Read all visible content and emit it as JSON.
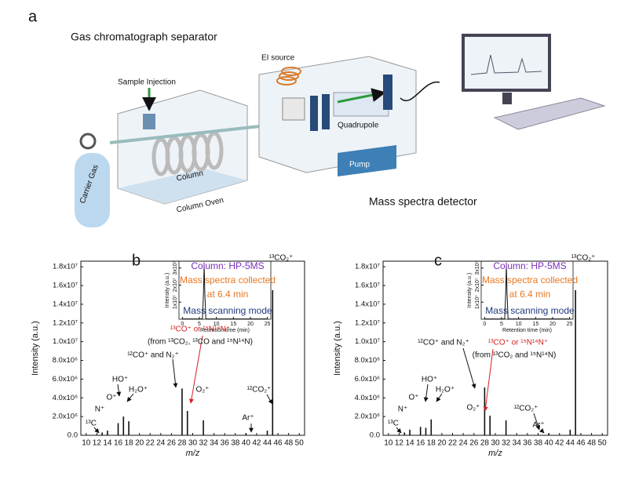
{
  "diagram": {
    "panel": "a",
    "title": "Gas chromatograph separator",
    "ei": "EI source",
    "injection": "Sample Injection",
    "quadrupole": "Quadrupole",
    "carrier": "Carrier Gas",
    "column": "Column",
    "oven": "Column Oven",
    "pump": "Pump",
    "detector": "Mass spectra detector"
  },
  "chart_data": [
    {
      "type": "bar",
      "panel": "b",
      "color": "#111",
      "xlabel": "m/z",
      "ylabel": "Intensity (a.u.)",
      "x": [
        13,
        14,
        16,
        17,
        18,
        28,
        29,
        32,
        40,
        44,
        45
      ],
      "values": [
        300000,
        500000,
        1300000,
        2000000,
        1500000,
        5000000,
        2600000,
        1600000,
        200000,
        500000,
        15500000
      ],
      "xlim": [
        9,
        51
      ],
      "xticks": [
        10,
        12,
        14,
        16,
        18,
        20,
        22,
        24,
        26,
        28,
        30,
        32,
        34,
        36,
        38,
        40,
        42,
        44,
        46,
        48,
        50
      ],
      "ylim": [
        0,
        18600000
      ],
      "yticks": [
        {
          "value": 0,
          "label": "0.0"
        },
        {
          "value": 2000000,
          "label": "2.0x10⁶"
        },
        {
          "value": 4000000,
          "label": "4.0x10⁶"
        },
        {
          "value": 6000000,
          "label": "6.0x10⁶"
        },
        {
          "value": 8000000,
          "label": "8.0x10⁶"
        },
        {
          "value": 10000000,
          "label": "1.0x10⁷"
        },
        {
          "value": 12000000,
          "label": "1.2x10⁷"
        },
        {
          "value": 14000000,
          "label": "1.4x10⁷"
        },
        {
          "value": 16000000,
          "label": "1.6x10⁷"
        },
        {
          "value": 18000000,
          "label": "1.8x10⁷"
        }
      ],
      "annotations": [
        {
          "text": "¹³C",
          "color": "#111"
        },
        {
          "text": "N⁺",
          "color": "#111"
        },
        {
          "text": "O⁺",
          "color": "#111"
        },
        {
          "text": "HO⁺",
          "color": "#111"
        },
        {
          "text": "H₂O⁺",
          "color": "#111"
        },
        {
          "text": "¹²CO⁺ and N₂⁺",
          "color": "#111"
        },
        {
          "text": "¹³CO⁺ or ¹⁵N¹⁴N⁺",
          "color": "#d42020"
        },
        {
          "text": "(from ¹³CO₂, ¹³CO and ¹⁵N¹⁴N)",
          "color": "#111"
        },
        {
          "text": "O₂⁺",
          "color": "#111"
        },
        {
          "text": "Ar⁺",
          "color": "#111"
        },
        {
          "text": "¹²CO₂⁺",
          "color": "#111"
        },
        {
          "text": "¹³CO₂⁺",
          "color": "#111"
        }
      ],
      "notes": [
        {
          "text": "Column: HP-5MS",
          "color": "#7b2fbe"
        },
        {
          "text": "Mass spectra collected",
          "color": "#e87722"
        },
        {
          "text": "at 6.4 min",
          "color": "#e87722"
        },
        {
          "text": "Mass scanning mode",
          "color": "#1f3a7a"
        }
      ],
      "inset": {
        "type": "line",
        "color": "#111",
        "xlabel": "Retention time (min)",
        "ylabel": "Intensity (a.u.)",
        "x": [
          0,
          5.9,
          6.2,
          6.4,
          6.6,
          6.9,
          25
        ],
        "values": [
          200000,
          200000,
          15000000,
          32000000,
          15000000,
          200000,
          200000
        ],
        "xlim": [
          -1,
          26
        ],
        "xticks": [
          0,
          5,
          10,
          15,
          20,
          25
        ],
        "ylim": [
          0,
          34000000
        ],
        "yticks": [
          {
            "value": 10000000,
            "label": "1x10⁷"
          },
          {
            "value": 20000000,
            "label": "2x10⁷"
          },
          {
            "value": 30000000,
            "label": "3x10⁷"
          }
        ]
      }
    },
    {
      "type": "bar",
      "panel": "c",
      "color": "#111",
      "xlabel": "m/z",
      "ylabel": "Intensity (a.u.)",
      "x": [
        13,
        14,
        16,
        17,
        18,
        28,
        29,
        32,
        40,
        44,
        45
      ],
      "values": [
        300000,
        600000,
        900000,
        800000,
        1700000,
        5100000,
        2100000,
        1600000,
        200000,
        600000,
        15500000
      ],
      "xlim": [
        9,
        51
      ],
      "xticks": [
        10,
        12,
        14,
        16,
        18,
        20,
        22,
        24,
        26,
        28,
        30,
        32,
        34,
        36,
        38,
        40,
        42,
        44,
        46,
        48,
        50
      ],
      "ylim": [
        0,
        18600000
      ],
      "yticks": [
        {
          "value": 0,
          "label": "0.0"
        },
        {
          "value": 2000000,
          "label": "2.0x10⁶"
        },
        {
          "value": 4000000,
          "label": "4.0x10⁶"
        },
        {
          "value": 6000000,
          "label": "6.0x10⁶"
        },
        {
          "value": 8000000,
          "label": "8.0x10⁶"
        },
        {
          "value": 10000000,
          "label": "1.0x10⁷"
        },
        {
          "value": 12000000,
          "label": "1.2x10⁷"
        },
        {
          "value": 14000000,
          "label": "1.4x10⁷"
        },
        {
          "value": 16000000,
          "label": "1.6x10⁷"
        },
        {
          "value": 18000000,
          "label": "1.8x10⁷"
        }
      ],
      "annotations": [
        {
          "text": "¹³C",
          "color": "#111"
        },
        {
          "text": "N⁺",
          "color": "#111"
        },
        {
          "text": "O⁺",
          "color": "#111"
        },
        {
          "text": "HO⁺",
          "color": "#111"
        },
        {
          "text": "H₂O⁺",
          "color": "#111"
        },
        {
          "text": "¹²CO⁺ and N₂⁺",
          "color": "#111"
        },
        {
          "text": "¹³CO⁺ or ¹⁵N¹⁴N⁺",
          "color": "#d42020"
        },
        {
          "text": "(from ¹³CO₂ and ¹⁵N¹⁴N)",
          "color": "#111"
        },
        {
          "text": "O₂⁺",
          "color": "#111"
        },
        {
          "text": "Ar⁺",
          "color": "#111"
        },
        {
          "text": "¹²CO₂⁺",
          "color": "#111"
        },
        {
          "text": "¹³CO₂⁺",
          "color": "#111"
        }
      ],
      "notes": [
        {
          "text": "Column: HP-5MS",
          "color": "#7b2fbe"
        },
        {
          "text": "Mass spectra collected",
          "color": "#e87722"
        },
        {
          "text": "at 6.4 min",
          "color": "#e87722"
        },
        {
          "text": "Mass scanning mode",
          "color": "#1f3a7a"
        }
      ],
      "inset": {
        "type": "line",
        "color": "#111",
        "xlabel": "Retention time (min)",
        "ylabel": "Intensity (a.u.)",
        "x": [
          0,
          5.9,
          6.2,
          6.4,
          6.6,
          6.9,
          25
        ],
        "values": [
          200000,
          200000,
          15000000,
          32000000,
          15000000,
          200000,
          200000
        ],
        "xlim": [
          -1,
          26
        ],
        "xticks": [
          0,
          5,
          10,
          15,
          20,
          25
        ],
        "ylim": [
          0,
          34000000
        ],
        "yticks": [
          {
            "value": 10000000,
            "label": "1x10⁷"
          },
          {
            "value": 20000000,
            "label": "2x10⁷"
          },
          {
            "value": 30000000,
            "label": "3x10⁷"
          }
        ]
      }
    }
  ]
}
